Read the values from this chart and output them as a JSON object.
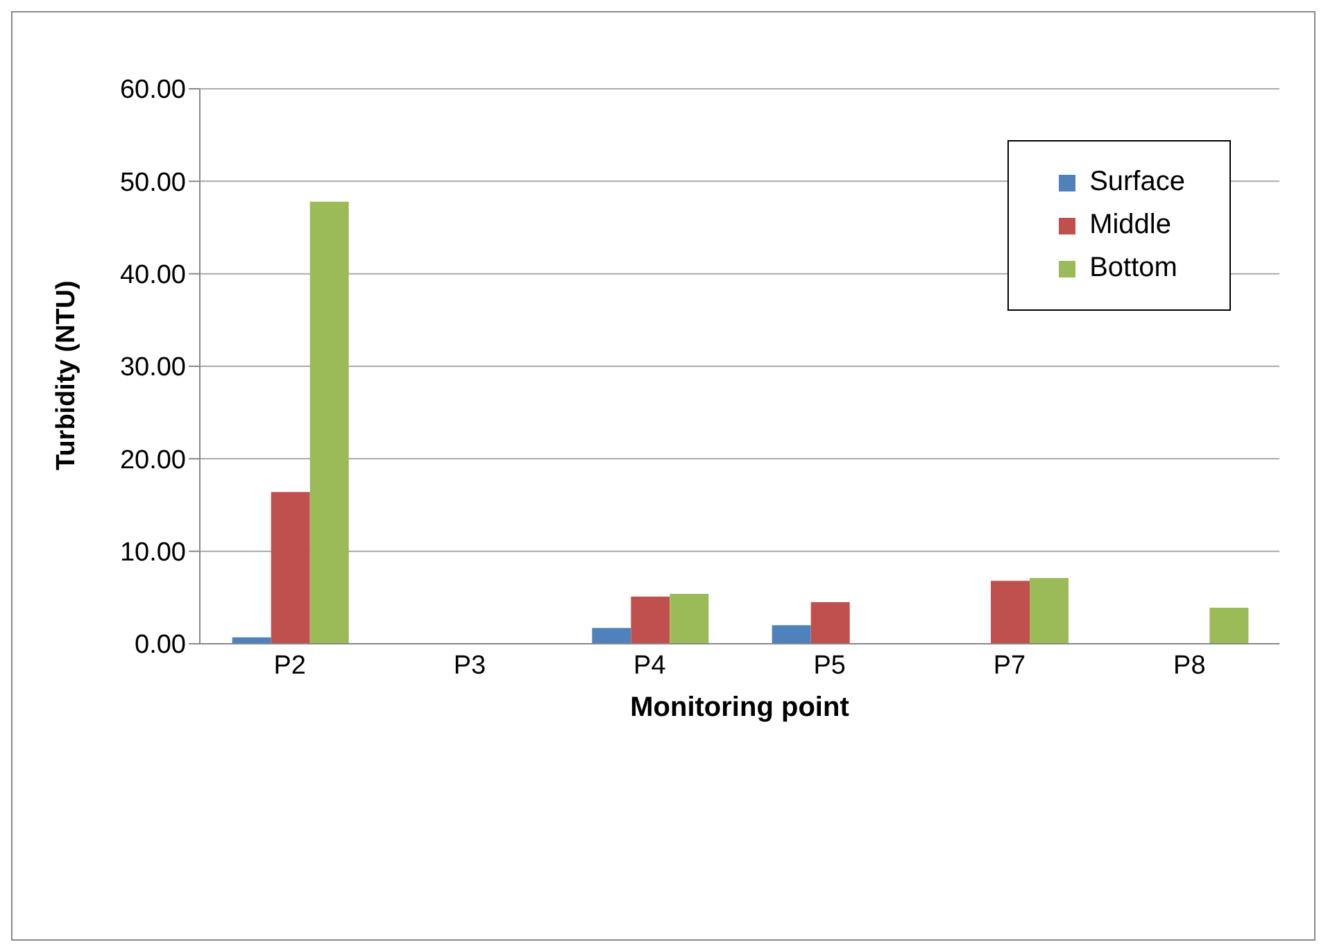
{
  "chart_data": {
    "type": "bar",
    "xlabel": "Monitoring point",
    "ylabel": "Turbidity (NTU)",
    "categories": [
      "P2",
      "P3",
      "P4",
      "P5",
      "P7",
      "P8"
    ],
    "series": [
      {
        "name": "Surface",
        "color": "#4f81bd",
        "values": [
          0.7,
          0,
          1.7,
          2.0,
          0,
          0
        ]
      },
      {
        "name": "Middle",
        "color": "#c0504d",
        "values": [
          16.4,
          0,
          5.1,
          4.5,
          6.8,
          0
        ]
      },
      {
        "name": "Bottom",
        "color": "#9bbb59",
        "values": [
          47.8,
          0,
          5.4,
          0,
          7.1,
          3.9
        ]
      }
    ],
    "ylim": [
      0,
      60
    ],
    "yticks": [
      {
        "value": 0,
        "label": "0.00"
      },
      {
        "value": 10,
        "label": "10.00"
      },
      {
        "value": 20,
        "label": "20.00"
      },
      {
        "value": 30,
        "label": "30.00"
      },
      {
        "value": 40,
        "label": "40.00"
      },
      {
        "value": 50,
        "label": "50.00"
      },
      {
        "value": 60,
        "label": "60.00"
      }
    ],
    "grid": "y",
    "legend": "top right"
  }
}
